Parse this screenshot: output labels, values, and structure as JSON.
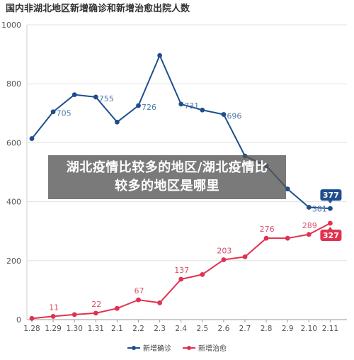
{
  "chart_data": {
    "type": "line",
    "title": "国内非湖北地区新增确诊和新增治愈出院人数",
    "categories": [
      "1.28",
      "1.29",
      "1.30",
      "1.31",
      "2.1",
      "2.2",
      "2.3",
      "2.4",
      "2.5",
      "2.6",
      "2.7",
      "2.8",
      "2.9",
      "2.10",
      "2.11"
    ],
    "yticks": [
      "0",
      "200",
      "400",
      "600",
      "800",
      "1000"
    ],
    "ylim": [
      0,
      1000
    ],
    "grid": true,
    "legend": "bottom",
    "series": [
      {
        "name": "新增确诊",
        "color": "#1f4e8c",
        "label_color": "#4f79a8",
        "values": [
          614,
          705,
          763,
          755,
          670,
          726,
          896,
          731,
          711,
          696,
          555,
          522,
          443,
          381,
          377
        ],
        "labels": [
          "",
          "705",
          "",
          "755",
          "",
          "726",
          "",
          "731",
          "",
          "696",
          "",
          "",
          "",
          "381",
          ""
        ],
        "end_badge": "377"
      },
      {
        "name": "新增治愈",
        "color": "#e03250",
        "label_color": "#d9506b",
        "values": [
          4,
          11,
          17,
          22,
          38,
          67,
          57,
          137,
          153,
          203,
          213,
          276,
          276,
          289,
          327
        ],
        "labels": [
          "",
          "11",
          "",
          "22",
          "",
          "67",
          "",
          "137",
          "",
          "203",
          "",
          "276",
          "",
          "289",
          ""
        ],
        "end_badge": "327"
      }
    ]
  },
  "overlay": {
    "text": "湖北疫情比较多的地区/湖北疫情比较多的地区是哪里"
  }
}
